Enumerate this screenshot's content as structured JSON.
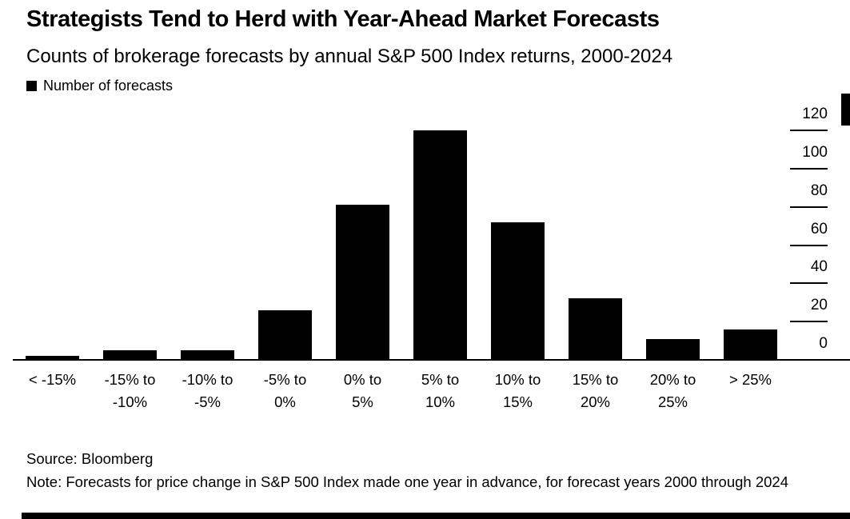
{
  "chart_data": {
    "type": "bar",
    "title": "Strategists Tend to Herd with Year-Ahead Market Forecasts",
    "subtitle": "Counts of brokerage forecasts by annual S&P 500 Index returns, 2000-2024",
    "legend_label": "Number of forecasts",
    "legend_position": "top-left",
    "categories": [
      "< -15%",
      "-15% to -10%",
      "-10% to -5%",
      "-5% to 0%",
      "0% to 5%",
      "5% to 10%",
      "10% to 15%",
      "15% to 20%",
      "20% to 25%",
      "> 25%"
    ],
    "category_lines": [
      [
        "< -15%"
      ],
      [
        "-15% to",
        "-10%"
      ],
      [
        "-10% to",
        "-5%"
      ],
      [
        "-5% to",
        "0%"
      ],
      [
        "0% to",
        "5%"
      ],
      [
        "5% to",
        "10%"
      ],
      [
        "10% to",
        "15%"
      ],
      [
        "15% to",
        "20%"
      ],
      [
        "20% to",
        "25%"
      ],
      [
        "> 25%"
      ]
    ],
    "values": [
      2,
      5,
      5,
      26,
      81,
      120,
      72,
      32,
      11,
      16
    ],
    "xlabel": "",
    "ylabel": "Number of forecasts",
    "ylim": [
      0,
      120
    ],
    "y_ticks": [
      0,
      20,
      40,
      60,
      80,
      100,
      120
    ],
    "y_axis_side": "right",
    "grid": "off",
    "bar_color": "#000000",
    "background_color": "#ffffff",
    "source": "Source: Bloomberg",
    "note": "Note: Forecasts for price change in S&P 500 Index made one year in advance, for forecast years 2000 through 2024"
  }
}
